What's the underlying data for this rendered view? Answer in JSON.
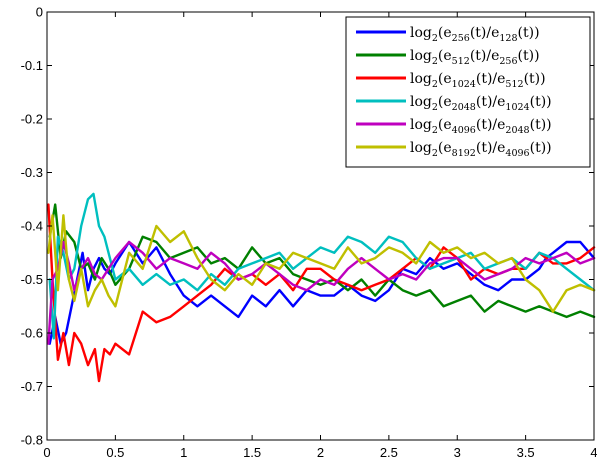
{
  "chart_data": {
    "type": "line",
    "title": "",
    "xlabel": "",
    "ylabel": "",
    "xlim": [
      0,
      4
    ],
    "ylim": [
      -0.8,
      0
    ],
    "x_ticks": [
      0,
      0.5,
      1,
      1.5,
      2,
      2.5,
      3,
      3.5,
      4
    ],
    "x_tick_labels": [
      "0",
      "0.5",
      "1",
      "1.5",
      "2",
      "2.5",
      "3",
      "3.5",
      "4"
    ],
    "y_ticks": [
      0,
      -0.1,
      -0.2,
      -0.3,
      -0.4,
      -0.5,
      -0.6,
      -0.7,
      -0.8
    ],
    "y_tick_labels": [
      "0",
      "-0.1",
      "-0.2",
      "-0.3",
      "-0.4",
      "-0.5",
      "-0.6",
      "-0.7",
      "-0.8"
    ],
    "grid": false,
    "legend_position": "top-right",
    "series": [
      {
        "name": "log2(e256(t)/e128(t))",
        "legend": {
          "pre": "log",
          "base": "2",
          "a": "256",
          "b": "128"
        },
        "color": "#0000ff",
        "x": [
          0.02,
          0.06,
          0.1,
          0.14,
          0.18,
          0.22,
          0.26,
          0.3,
          0.34,
          0.38,
          0.42,
          0.46,
          0.5,
          0.6,
          0.7,
          0.8,
          0.9,
          1.0,
          1.1,
          1.2,
          1.3,
          1.4,
          1.5,
          1.6,
          1.7,
          1.8,
          1.9,
          2.0,
          2.1,
          2.2,
          2.3,
          2.4,
          2.5,
          2.6,
          2.7,
          2.8,
          2.9,
          3.0,
          3.1,
          3.2,
          3.3,
          3.4,
          3.5,
          3.6,
          3.65,
          3.7,
          3.8,
          3.9,
          4.0
        ],
        "y": [
          -0.62,
          -0.57,
          -0.62,
          -0.6,
          -0.55,
          -0.5,
          -0.45,
          -0.52,
          -0.48,
          -0.46,
          -0.48,
          -0.49,
          -0.47,
          -0.43,
          -0.47,
          -0.44,
          -0.49,
          -0.53,
          -0.55,
          -0.53,
          -0.55,
          -0.57,
          -0.53,
          -0.55,
          -0.52,
          -0.55,
          -0.52,
          -0.53,
          -0.53,
          -0.51,
          -0.53,
          -0.54,
          -0.52,
          -0.48,
          -0.49,
          -0.46,
          -0.48,
          -0.47,
          -0.49,
          -0.51,
          -0.52,
          -0.5,
          -0.5,
          -0.48,
          -0.46,
          -0.45,
          -0.43,
          -0.43,
          -0.46
        ]
      },
      {
        "name": "log2(e512(t)/e256(t))",
        "legend": {
          "pre": "log",
          "base": "2",
          "a": "512",
          "b": "256"
        },
        "color": "#008000",
        "x": [
          0.02,
          0.06,
          0.1,
          0.14,
          0.2,
          0.25,
          0.3,
          0.35,
          0.4,
          0.45,
          0.5,
          0.6,
          0.7,
          0.8,
          0.9,
          1.0,
          1.1,
          1.2,
          1.3,
          1.4,
          1.5,
          1.6,
          1.7,
          1.8,
          1.9,
          2.0,
          2.1,
          2.2,
          2.3,
          2.4,
          2.5,
          2.6,
          2.7,
          2.8,
          2.9,
          3.0,
          3.1,
          3.2,
          3.3,
          3.4,
          3.5,
          3.6,
          3.7,
          3.8,
          3.9,
          4.0
        ],
        "y": [
          -0.42,
          -0.36,
          -0.46,
          -0.41,
          -0.43,
          -0.48,
          -0.47,
          -0.5,
          -0.46,
          -0.48,
          -0.51,
          -0.48,
          -0.42,
          -0.43,
          -0.46,
          -0.45,
          -0.44,
          -0.47,
          -0.46,
          -0.48,
          -0.44,
          -0.47,
          -0.46,
          -0.49,
          -0.5,
          -0.51,
          -0.5,
          -0.52,
          -0.5,
          -0.53,
          -0.5,
          -0.52,
          -0.53,
          -0.52,
          -0.55,
          -0.54,
          -0.53,
          -0.56,
          -0.54,
          -0.55,
          -0.56,
          -0.55,
          -0.56,
          -0.57,
          -0.56,
          -0.57
        ]
      },
      {
        "name": "log2(e1024(t)/e512(t))",
        "legend": {
          "pre": "log",
          "base": "2",
          "a": "1024",
          "b": "512"
        },
        "color": "#ff0000",
        "x": [
          0.01,
          0.04,
          0.08,
          0.12,
          0.16,
          0.2,
          0.25,
          0.3,
          0.35,
          0.38,
          0.42,
          0.46,
          0.5,
          0.6,
          0.7,
          0.8,
          0.9,
          1.0,
          1.1,
          1.2,
          1.3,
          1.4,
          1.5,
          1.6,
          1.7,
          1.8,
          1.9,
          2.0,
          2.1,
          2.2,
          2.3,
          2.4,
          2.5,
          2.6,
          2.7,
          2.8,
          2.9,
          3.0,
          3.1,
          3.2,
          3.3,
          3.4,
          3.5,
          3.6,
          3.7,
          3.8,
          3.9,
          4.0
        ],
        "y": [
          -0.36,
          -0.5,
          -0.65,
          -0.6,
          -0.66,
          -0.6,
          -0.62,
          -0.66,
          -0.63,
          -0.69,
          -0.63,
          -0.64,
          -0.62,
          -0.64,
          -0.56,
          -0.58,
          -0.57,
          -0.55,
          -0.53,
          -0.51,
          -0.48,
          -0.5,
          -0.49,
          -0.51,
          -0.49,
          -0.52,
          -0.48,
          -0.48,
          -0.5,
          -0.51,
          -0.52,
          -0.51,
          -0.5,
          -0.48,
          -0.46,
          -0.48,
          -0.44,
          -0.46,
          -0.5,
          -0.48,
          -0.49,
          -0.48,
          -0.48,
          -0.45,
          -0.47,
          -0.47,
          -0.46,
          -0.44
        ]
      },
      {
        "name": "log2(e2048(t)/e1024(t))",
        "legend": {
          "pre": "log",
          "base": "2",
          "a": "2048",
          "b": "1024"
        },
        "color": "#00bfbf",
        "x": [
          0.02,
          0.05,
          0.08,
          0.12,
          0.16,
          0.2,
          0.25,
          0.3,
          0.34,
          0.38,
          0.42,
          0.46,
          0.5,
          0.6,
          0.7,
          0.8,
          0.9,
          1.0,
          1.1,
          1.2,
          1.3,
          1.4,
          1.5,
          1.6,
          1.7,
          1.8,
          1.9,
          2.0,
          2.1,
          2.2,
          2.3,
          2.4,
          2.5,
          2.6,
          2.7,
          2.8,
          2.9,
          3.0,
          3.1,
          3.2,
          3.3,
          3.4,
          3.5,
          3.6,
          3.7,
          3.8,
          3.9,
          4.0
        ],
        "y": [
          -0.5,
          -0.61,
          -0.42,
          -0.45,
          -0.5,
          -0.48,
          -0.4,
          -0.35,
          -0.34,
          -0.4,
          -0.42,
          -0.46,
          -0.5,
          -0.48,
          -0.51,
          -0.49,
          -0.51,
          -0.5,
          -0.52,
          -0.49,
          -0.51,
          -0.48,
          -0.47,
          -0.46,
          -0.45,
          -0.48,
          -0.46,
          -0.44,
          -0.45,
          -0.42,
          -0.43,
          -0.45,
          -0.42,
          -0.43,
          -0.46,
          -0.48,
          -0.47,
          -0.46,
          -0.45,
          -0.48,
          -0.47,
          -0.46,
          -0.48,
          -0.45,
          -0.46,
          -0.48,
          -0.5,
          -0.52
        ]
      },
      {
        "name": "log2(e4096(t)/e2048(t))",
        "legend": {
          "pre": "log",
          "base": "2",
          "a": "4096",
          "b": "2048"
        },
        "color": "#bf00bf",
        "x": [
          0.01,
          0.04,
          0.08,
          0.12,
          0.16,
          0.2,
          0.25,
          0.3,
          0.35,
          0.4,
          0.45,
          0.5,
          0.6,
          0.7,
          0.8,
          0.9,
          1.0,
          1.1,
          1.2,
          1.3,
          1.4,
          1.5,
          1.6,
          1.7,
          1.8,
          1.9,
          2.0,
          2.1,
          2.2,
          2.3,
          2.4,
          2.5,
          2.6,
          2.7,
          2.8,
          2.9,
          3.0,
          3.1,
          3.2,
          3.3,
          3.4,
          3.5,
          3.6,
          3.7,
          3.8,
          3.9,
          4.0
        ],
        "y": [
          -0.62,
          -0.5,
          -0.48,
          -0.43,
          -0.47,
          -0.52,
          -0.48,
          -0.46,
          -0.49,
          -0.5,
          -0.48,
          -0.46,
          -0.43,
          -0.45,
          -0.48,
          -0.46,
          -0.47,
          -0.48,
          -0.45,
          -0.47,
          -0.5,
          -0.49,
          -0.47,
          -0.49,
          -0.51,
          -0.52,
          -0.5,
          -0.51,
          -0.48,
          -0.46,
          -0.48,
          -0.5,
          -0.49,
          -0.5,
          -0.47,
          -0.46,
          -0.46,
          -0.48,
          -0.5,
          -0.49,
          -0.48,
          -0.46,
          -0.47,
          -0.46,
          -0.45,
          -0.47,
          -0.46
        ]
      },
      {
        "name": "log2(e8192(t)/e4096(t))",
        "legend": {
          "pre": "log",
          "base": "2",
          "a": "8192",
          "b": "4096"
        },
        "color": "#bfbf00",
        "x": [
          0.01,
          0.04,
          0.08,
          0.12,
          0.16,
          0.2,
          0.25,
          0.3,
          0.35,
          0.4,
          0.45,
          0.5,
          0.6,
          0.7,
          0.8,
          0.9,
          1.0,
          1.1,
          1.2,
          1.3,
          1.4,
          1.5,
          1.6,
          1.7,
          1.8,
          1.9,
          2.0,
          2.1,
          2.2,
          2.3,
          2.4,
          2.5,
          2.6,
          2.7,
          2.8,
          2.9,
          3.0,
          3.1,
          3.2,
          3.3,
          3.4,
          3.5,
          3.6,
          3.7,
          3.8,
          3.9,
          4.0
        ],
        "y": [
          -0.45,
          -0.38,
          -0.52,
          -0.38,
          -0.5,
          -0.54,
          -0.48,
          -0.55,
          -0.52,
          -0.5,
          -0.53,
          -0.55,
          -0.45,
          -0.48,
          -0.4,
          -0.43,
          -0.41,
          -0.46,
          -0.5,
          -0.52,
          -0.49,
          -0.51,
          -0.47,
          -0.48,
          -0.45,
          -0.46,
          -0.47,
          -0.48,
          -0.44,
          -0.47,
          -0.46,
          -0.44,
          -0.45,
          -0.47,
          -0.43,
          -0.45,
          -0.44,
          -0.46,
          -0.45,
          -0.47,
          -0.46,
          -0.5,
          -0.52,
          -0.56,
          -0.52,
          -0.51,
          -0.52
        ]
      }
    ]
  }
}
